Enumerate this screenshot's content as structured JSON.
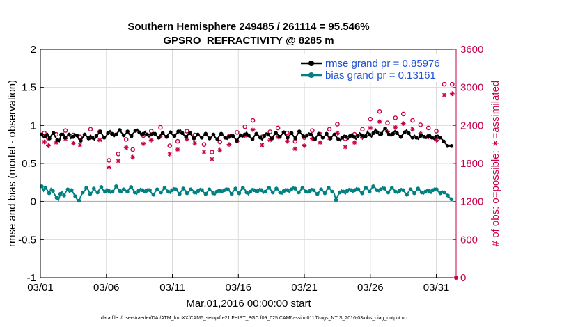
{
  "chart_data": {
    "type": "line",
    "title_line1": "Southern Hemisphere 249485 / 261114 = 95.546%",
    "title_line2": "GPSRO_REFRACTIVITY @ 8285 m",
    "xlabel": "Mar.01,2016 00:00:00 start",
    "ylabel": "rmse and bias (model - observation)",
    "ylabel_right": "# of obs: o=possible; ∗=assimilated",
    "footer": "data file: /Users/raeder/DAI/ATM_forcXX/CAM6_setup/f.e21.FHIST_BGC.f09_025.CAM6assim.011/Diags_NTrS_2016-03/obs_diag_output.nc",
    "xlim": [
      0,
      31.5
    ],
    "ylim": [
      -1,
      2
    ],
    "ylim_right": [
      0,
      3600
    ],
    "x_ticks": [
      0,
      5,
      10,
      15,
      20,
      25,
      30
    ],
    "x_tick_labels": [
      "03/01",
      "03/06",
      "03/11",
      "03/16",
      "03/21",
      "03/26",
      "03/31"
    ],
    "y_ticks": [
      -1,
      -0.5,
      0,
      0.5,
      1,
      1.5,
      2
    ],
    "y_tick_labels": [
      "-1",
      "-0.5",
      "0",
      "0.5",
      "1",
      "1.5",
      "2"
    ],
    "y_right_ticks": [
      0,
      600,
      1200,
      1800,
      2400,
      3000,
      3600
    ],
    "y_right_tick_labels": [
      "0",
      "600",
      "1200",
      "1800",
      "2400",
      "3000",
      "3600"
    ],
    "grid": true,
    "legend_position": "top-right",
    "colors": {
      "rmse": "#000000",
      "bias": "#008080",
      "obs": "#c8004a",
      "legend_text": "#1f4fd6",
      "grid": "#d9d9d9",
      "zero_line": "#b0b0b0"
    },
    "series": [
      {
        "name": "rmse grand pr = 0.85976",
        "marker": "filled-circle",
        "values": [
          0.88,
          0.84,
          0.86,
          0.89,
          0.83,
          0.87,
          0.9,
          0.85,
          0.81,
          0.79,
          0.88,
          0.9,
          0.84,
          0.86,
          0.88,
          0.83,
          0.85,
          0.89,
          0.87,
          0.82,
          0.8,
          0.84,
          0.88,
          0.86,
          0.83,
          0.87,
          0.84,
          0.81,
          0.86,
          0.89,
          0.92,
          0.88,
          0.84,
          0.86,
          0.9,
          0.93,
          0.89,
          0.85,
          0.88,
          0.91,
          0.94,
          0.9,
          0.87,
          0.89,
          0.92,
          0.88,
          0.86,
          0.9,
          0.93,
          0.95,
          0.91,
          0.87,
          0.89,
          0.92,
          0.88,
          0.85,
          0.88,
          0.91,
          0.89,
          0.86,
          0.84,
          0.88,
          0.9,
          0.87,
          0.85,
          0.89,
          0.91,
          0.88,
          0.86,
          0.89,
          0.92,
          0.94,
          0.9,
          0.87,
          0.85,
          0.88,
          0.9,
          0.86,
          0.83,
          0.85,
          0.88,
          0.86,
          0.84,
          0.87,
          0.89,
          0.86,
          0.83,
          0.85,
          0.88,
          0.84,
          0.82,
          0.86,
          0.89,
          0.87,
          0.84,
          0.82,
          0.85,
          0.88,
          0.86,
          0.83,
          0.8,
          0.84,
          0.87,
          0.85,
          0.88,
          0.91,
          0.87,
          0.84,
          0.82,
          0.86,
          0.89,
          0.87,
          0.84,
          0.81,
          0.86,
          0.9,
          0.88,
          0.85,
          0.83,
          0.87,
          0.9,
          0.88,
          0.85,
          0.88,
          0.91,
          0.87,
          0.84,
          0.87,
          0.9,
          0.86,
          0.83,
          0.88,
          0.92,
          0.89,
          0.86,
          0.84,
          0.87,
          0.9,
          0.88,
          0.85,
          0.82,
          0.86,
          0.89,
          0.87,
          0.84,
          0.86,
          0.89,
          0.85,
          0.83,
          0.86,
          0.88,
          0.85,
          0.82,
          0.8,
          0.84,
          0.87,
          0.85,
          0.82,
          0.86,
          0.89,
          0.85,
          0.82,
          0.86,
          0.9,
          0.87,
          0.84,
          0.86,
          0.92,
          0.88,
          0.85,
          0.9,
          0.95,
          0.91,
          0.87,
          0.89,
          0.93,
          0.96,
          0.92,
          0.88,
          0.86,
          0.89,
          0.93,
          0.9,
          0.87,
          0.85,
          0.88,
          0.91,
          0.94,
          0.9,
          0.86,
          0.84,
          0.87,
          0.84,
          0.82,
          0.86,
          0.88,
          0.85,
          0.83,
          0.86,
          0.88,
          0.84,
          0.82,
          0.85,
          0.87,
          0.84,
          0.82,
          0.79,
          0.76,
          0.73,
          0.74,
          0.73
        ]
      },
      {
        "name": "bias grand pr = 0.13161",
        "marker": "filled-circle",
        "values": [
          0.2,
          0.14,
          0.18,
          0.15,
          0.11,
          0.17,
          0.14,
          0.09,
          0.05,
          0.02,
          0.1,
          0.13,
          0.08,
          0.13,
          0.16,
          0.12,
          0.15,
          0.11,
          0.07,
          0.03,
          0.01,
          0.07,
          0.12,
          0.14,
          0.18,
          0.15,
          0.1,
          0.12,
          0.17,
          0.14,
          0.12,
          0.16,
          0.19,
          0.15,
          0.13,
          0.17,
          0.14,
          0.11,
          0.13,
          0.16,
          0.2,
          0.17,
          0.14,
          0.12,
          0.16,
          0.15,
          0.13,
          0.17,
          0.19,
          0.16,
          0.12,
          0.1,
          0.14,
          0.17,
          0.15,
          0.12,
          0.14,
          0.17,
          0.15,
          0.11,
          0.09,
          0.13,
          0.16,
          0.14,
          0.12,
          0.15,
          0.18,
          0.16,
          0.13,
          0.11,
          0.15,
          0.18,
          0.16,
          0.13,
          0.1,
          0.14,
          0.17,
          0.15,
          0.11,
          0.13,
          0.16,
          0.15,
          0.12,
          0.1,
          0.14,
          0.17,
          0.15,
          0.12,
          0.1,
          0.13,
          0.16,
          0.14,
          0.11,
          0.09,
          0.13,
          0.16,
          0.14,
          0.12,
          0.15,
          0.18,
          0.16,
          0.13,
          0.1,
          0.14,
          0.17,
          0.13,
          0.11,
          0.15,
          0.18,
          0.16,
          0.12,
          0.09,
          0.13,
          0.17,
          0.15,
          0.12,
          0.14,
          0.17,
          0.15,
          0.11,
          0.13,
          0.16,
          0.18,
          0.15,
          0.12,
          0.14,
          0.17,
          0.15,
          0.12,
          0.1,
          0.14,
          0.17,
          0.15,
          0.12,
          0.16,
          0.19,
          0.17,
          0.14,
          0.12,
          0.15,
          0.18,
          0.16,
          0.13,
          0.11,
          0.14,
          0.17,
          0.15,
          0.12,
          0.1,
          0.13,
          0.16,
          0.14,
          0.11,
          0.15,
          0.18,
          0.16,
          0.13,
          0.11,
          0.02,
          0.08,
          0.12,
          0.15,
          0.13,
          0.1,
          0.14,
          0.17,
          0.15,
          0.12,
          0.15,
          0.18,
          0.16,
          0.13,
          0.11,
          0.15,
          0.18,
          0.16,
          0.13,
          0.17,
          0.2,
          0.18,
          0.15,
          0.13,
          0.16,
          0.19,
          0.17,
          0.14,
          0.12,
          0.15,
          0.18,
          0.16,
          0.13,
          0.11,
          0.14,
          0.17,
          0.15,
          0.12,
          0.09,
          0.13,
          0.16,
          0.14,
          0.11,
          0.14,
          0.17,
          0.15,
          0.12,
          0.1,
          0.13,
          0.16,
          0.14,
          0.11,
          0.15,
          0.18,
          0.16,
          0.13,
          0.11,
          0.14,
          0.12,
          0.1,
          0.08,
          0.05,
          0.03
        ]
      },
      {
        "name": "# of obs possible",
        "marker": "open-circle",
        "axis": "right",
        "x": [
          0.3,
          0.6,
          1.2,
          1.9,
          2.5,
          3.0,
          3.8,
          4.5,
          5.2,
          5.9,
          6.5,
          7.0,
          7.8,
          8.4,
          9.1,
          9.8,
          10.4,
          11.1,
          11.7,
          12.4,
          13.0,
          13.6,
          14.3,
          14.9,
          15.5,
          16.1,
          16.8,
          17.4,
          18.0,
          18.7,
          19.3,
          20.0,
          20.6,
          21.2,
          21.9,
          22.5,
          23.1,
          23.8,
          24.4,
          25.0,
          25.7,
          26.3,
          26.9,
          27.5,
          28.2,
          28.8,
          29.4,
          30.0,
          30.6,
          31.2
        ],
        "values": [
          2280,
          2200,
          2260,
          2320,
          2250,
          2220,
          2340,
          2300,
          1850,
          1950,
          2180,
          2020,
          2240,
          2310,
          2370,
          2080,
          2150,
          2310,
          2250,
          2100,
          1980,
          2140,
          2230,
          2290,
          2380,
          2480,
          2220,
          2300,
          2360,
          2280,
          2150,
          2210,
          2320,
          2260,
          2340,
          2420,
          2190,
          2260,
          2340,
          2500,
          2620,
          2440,
          2520,
          2580,
          2480,
          2410,
          2360,
          2310,
          3050,
          3050
        ]
      },
      {
        "name": "# of obs assimilated",
        "marker": "asterisk",
        "axis": "right",
        "x": [
          0.3,
          0.6,
          1.2,
          1.9,
          2.5,
          3.0,
          3.8,
          4.5,
          5.2,
          5.9,
          6.5,
          7.0,
          7.8,
          8.4,
          9.1,
          9.8,
          10.4,
          11.1,
          11.7,
          12.4,
          13.0,
          13.6,
          14.3,
          14.9,
          15.5,
          16.1,
          16.8,
          17.4,
          18.0,
          18.7,
          19.3,
          20.0,
          20.6,
          21.2,
          21.9,
          22.5,
          23.1,
          23.8,
          24.4,
          25.0,
          25.7,
          26.3,
          26.9,
          27.5,
          28.2,
          28.8,
          29.4,
          30.0,
          30.6,
          31.2
        ],
        "values": [
          2140,
          2080,
          2130,
          2190,
          2120,
          2090,
          2210,
          2170,
          1740,
          1840,
          2050,
          1900,
          2110,
          2170,
          2230,
          1950,
          2020,
          2180,
          2120,
          1980,
          1870,
          2010,
          2100,
          2150,
          2240,
          2330,
          2090,
          2170,
          2220,
          2150,
          2030,
          2080,
          2190,
          2130,
          2200,
          2280,
          2060,
          2130,
          2210,
          2360,
          2460,
          2300,
          2370,
          2430,
          2340,
          2270,
          2220,
          2170,
          2880,
          2900
        ]
      }
    ]
  }
}
